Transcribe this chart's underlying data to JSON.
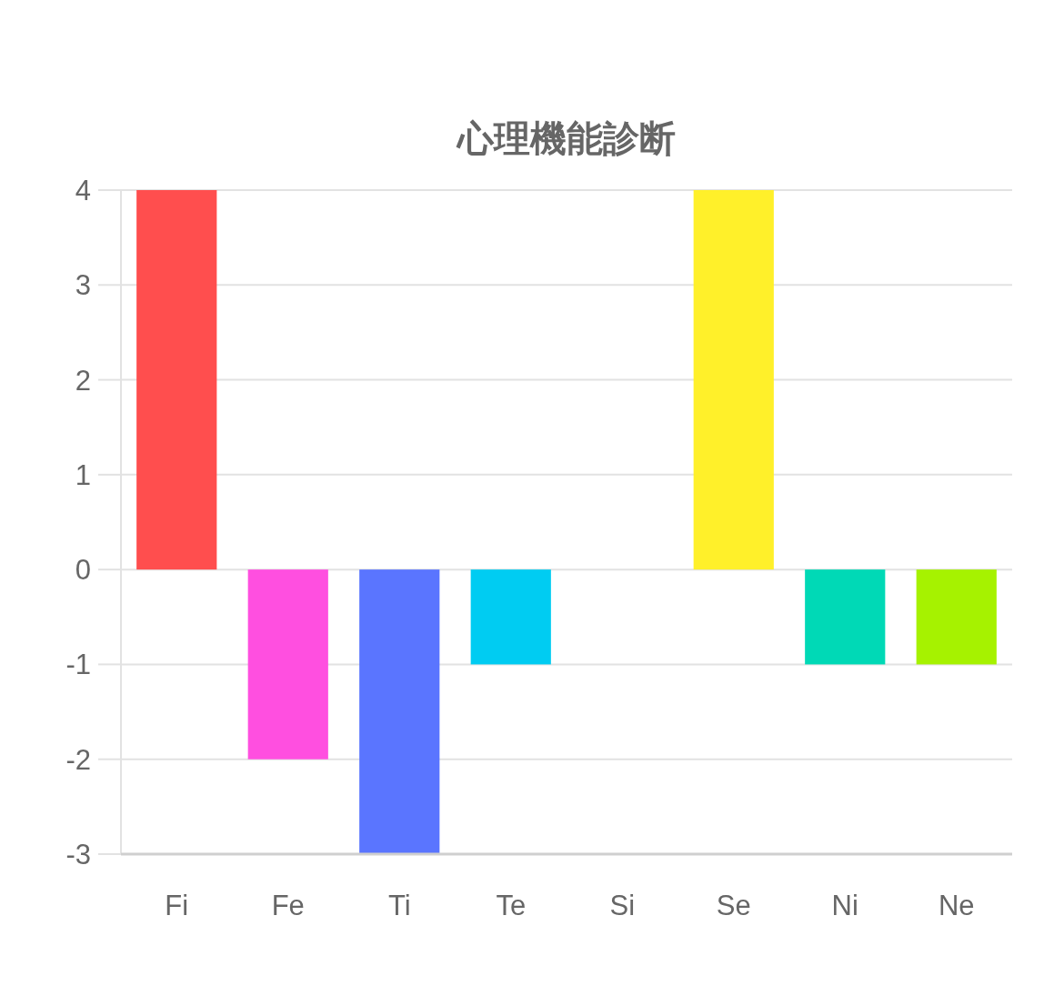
{
  "chart_data": {
    "type": "bar",
    "title": "心理機能診断",
    "categories": [
      "Fi",
      "Fe",
      "Ti",
      "Te",
      "Si",
      "Se",
      "Ni",
      "Ne"
    ],
    "values": [
      4,
      -2,
      -3,
      -1,
      0,
      4,
      -1,
      -1
    ],
    "colors": [
      "#ff4e4e",
      "#ff4fe0",
      "#5a75ff",
      "#00ccf2",
      null,
      "#fff02a",
      "#00d9b6",
      "#a6f200"
    ],
    "ylim": [
      -3,
      4
    ],
    "yticks": [
      -3,
      -2,
      -1,
      0,
      1,
      2,
      3,
      4
    ],
    "grid": "y"
  }
}
